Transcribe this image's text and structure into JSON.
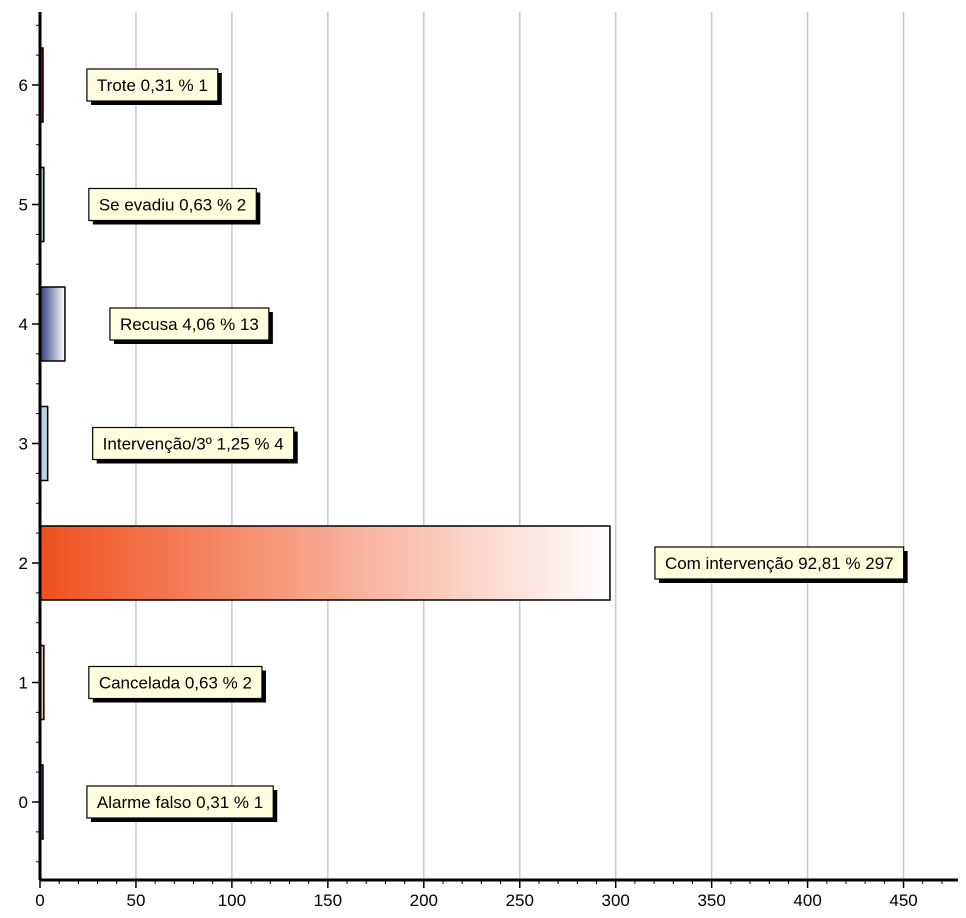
{
  "chart_data": {
    "type": "bar",
    "orientation": "horizontal",
    "title": "",
    "xlabel": "",
    "ylabel": "",
    "xlim": [
      0,
      480
    ],
    "ylim": [
      -0.5,
      6.5
    ],
    "grid": "vertical",
    "x_ticks": [
      "0",
      "50",
      "100",
      "150",
      "200",
      "250",
      "300",
      "350",
      "400",
      "450"
    ],
    "y_ticks": [
      "0",
      "1",
      "2",
      "3",
      "4",
      "5",
      "6"
    ],
    "bars": [
      {
        "y": 0,
        "value": 1,
        "label": "Alarme falso 0,31 % 1",
        "color": "#3a64b8",
        "fill": "solid"
      },
      {
        "y": 1,
        "value": 2,
        "label": "Cancelada 0,63 % 2",
        "color": "#e8c0b0",
        "fill": "solid"
      },
      {
        "y": 2,
        "value": 297,
        "label": "Com intervenção 92,81 % 297",
        "color": "#f0501e",
        "fill": "gradient"
      },
      {
        "y": 3,
        "value": 4,
        "label": "Intervenção/3º 1,25 % 4",
        "color": "#b8d4dc",
        "fill": "solid"
      },
      {
        "y": 4,
        "value": 13,
        "label": "Recusa 4,06 % 13",
        "color": "#2e3c78",
        "fill": "gradient"
      },
      {
        "y": 5,
        "value": 2,
        "label": "Se evadiu 0,63 % 2",
        "color": "#9cc0b0",
        "fill": "solid"
      },
      {
        "y": 6,
        "value": 1,
        "label": "Trote 0,31 % 1",
        "color": "#c81818",
        "fill": "solid"
      }
    ]
  }
}
